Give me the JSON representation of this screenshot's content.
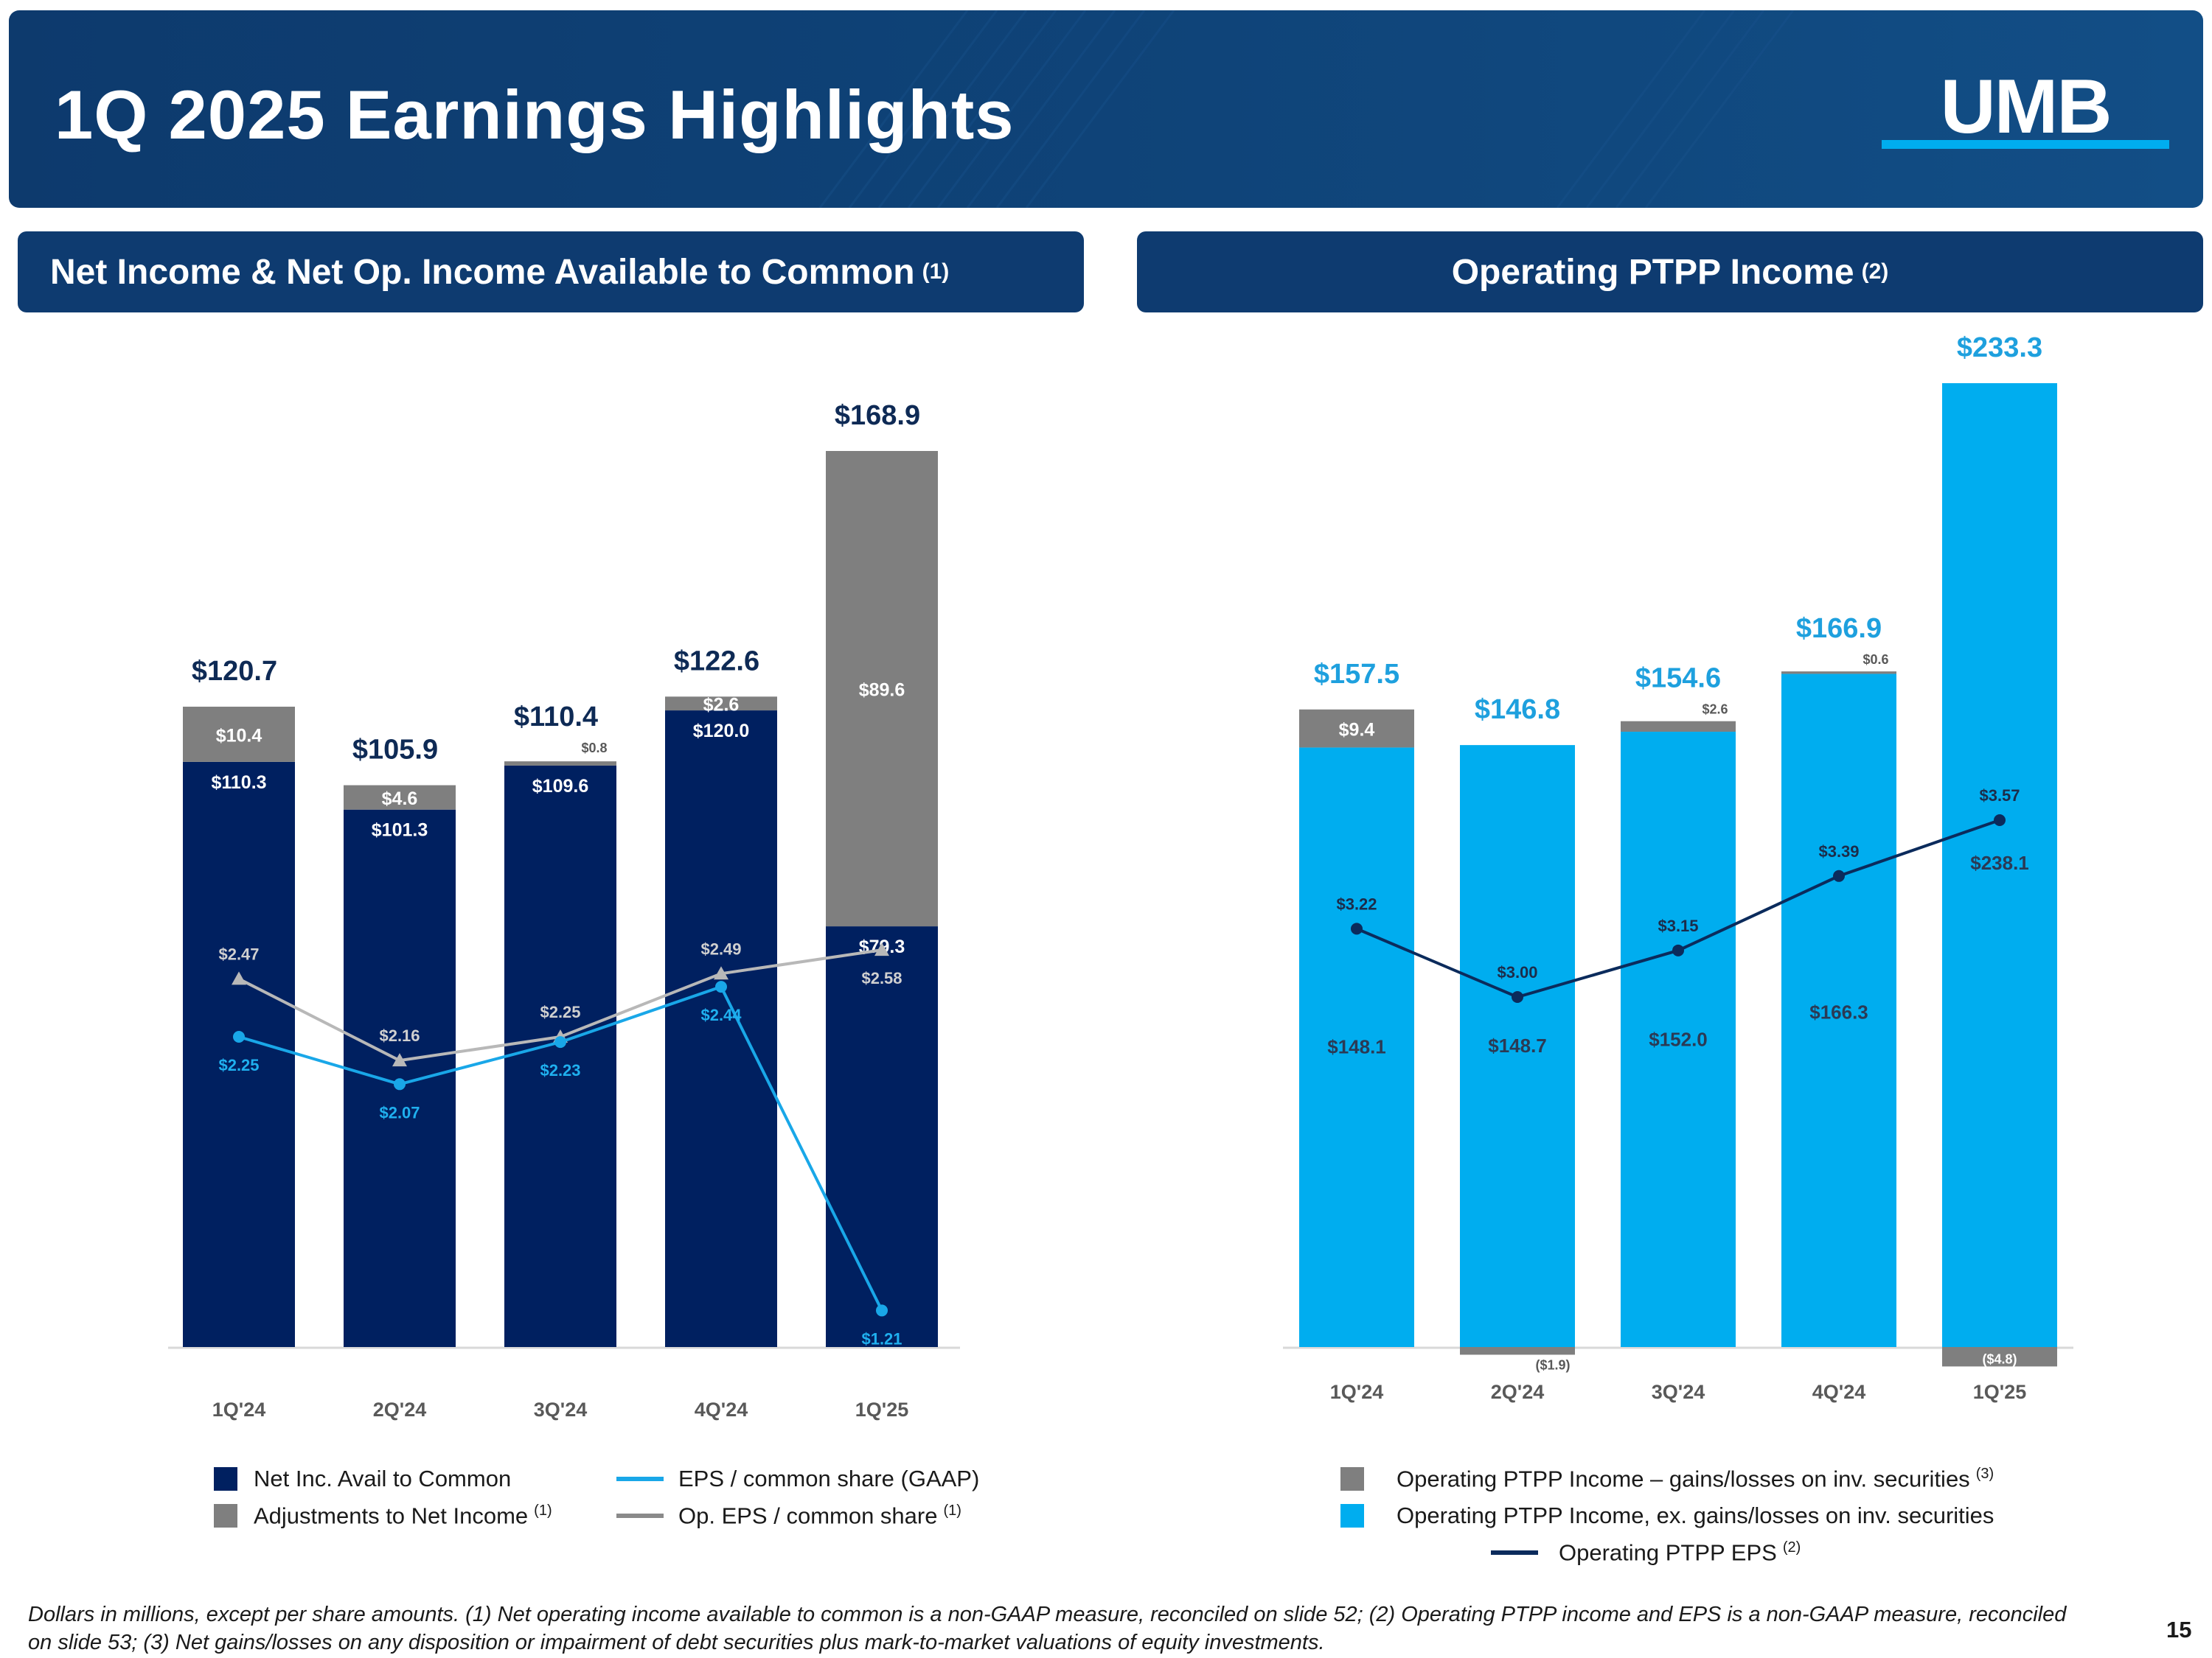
{
  "header": {
    "title": "1Q 2025 Earnings Highlights",
    "logo_text": "UMB"
  },
  "left_panel": {
    "title": "Net Income & Net Op. Income Available to Common",
    "title_note": "(1)"
  },
  "right_panel": {
    "title": "Operating PTPP Income",
    "title_note": "(2)"
  },
  "colors": {
    "navy": "#002060",
    "gray": "#7f7f7f",
    "cyan": "#00adef",
    "eps_cyan": "#19a7e8",
    "op_eps_gray": "#b8b8b8",
    "ptpp_eps_navy": "#0b2b5c",
    "header_bg": "#0e3b70"
  },
  "chart_data": [
    {
      "type": "bar",
      "stacked": true,
      "title": "Net Income & Net Op. Income Available to Common (1)",
      "categories": [
        "1Q'24",
        "2Q'24",
        "3Q'24",
        "4Q'24",
        "1Q'25"
      ],
      "series": [
        {
          "name": "Net Inc. Avail to Common",
          "values": [
            110.3,
            101.3,
            109.6,
            120.0,
            79.3
          ],
          "labels": [
            "$110.3",
            "$101.3",
            "$109.6",
            "$120.0",
            "$79.3"
          ]
        },
        {
          "name": "Adjustments to Net Income",
          "note": "(1)",
          "values": [
            10.4,
            4.6,
            0.8,
            2.6,
            89.6
          ],
          "labels": [
            "$10.4",
            "$4.6",
            "$0.8",
            "$2.6",
            "$89.6"
          ]
        }
      ],
      "totals": [
        120.7,
        105.9,
        110.4,
        122.6,
        168.9
      ],
      "total_labels": [
        "$120.7",
        "$105.9",
        "$110.4",
        "$122.6",
        "$168.9"
      ],
      "lines": [
        {
          "name": "EPS / common share (GAAP)",
          "values": [
            2.25,
            2.07,
            2.23,
            2.44,
            1.21
          ],
          "labels": [
            "$2.25",
            "$2.07",
            "$2.23",
            "$2.44",
            "$1.21"
          ]
        },
        {
          "name": "Op. EPS / common share",
          "note": "(1)",
          "values": [
            2.47,
            2.16,
            2.25,
            2.49,
            2.58
          ],
          "labels": [
            "$2.47",
            "$2.16",
            "$2.25",
            "$2.49",
            "$2.58"
          ]
        }
      ],
      "ylim": [
        0,
        180
      ],
      "eps_range": [
        0,
        3.1
      ],
      "legend_position": "bottom"
    },
    {
      "type": "bar",
      "stacked": true,
      "title": "Operating PTPP Income (2)",
      "categories": [
        "1Q'24",
        "2Q'24",
        "3Q'24",
        "4Q'24",
        "1Q'25"
      ],
      "series": [
        {
          "name": "Operating PTPP Income, ex. gains/losses on inv. securities",
          "values": [
            148.1,
            148.7,
            152.0,
            166.3,
            238.1
          ],
          "labels": [
            "$148.1",
            "$148.7",
            "$152.0",
            "$166.3",
            "$238.1"
          ]
        },
        {
          "name": "Operating PTPP Income – gains/losses on inv. securities",
          "note": "(3)",
          "values": [
            9.4,
            -1.9,
            2.6,
            0.6,
            -4.8
          ],
          "labels": [
            "$9.4",
            "($1.9)",
            "$2.6",
            "$0.6",
            "($4.8)"
          ]
        }
      ],
      "totals": [
        157.5,
        146.8,
        154.6,
        166.9,
        233.3
      ],
      "total_labels": [
        "$157.5",
        "$146.8",
        "$154.6",
        "$166.9",
        "$233.3"
      ],
      "lines": [
        {
          "name": "Operating PTPP EPS",
          "note": "(2)",
          "values": [
            3.22,
            3.0,
            3.15,
            3.39,
            3.57
          ],
          "labels": [
            "$3.22",
            "$3.00",
            "$3.15",
            "$3.39",
            "$3.57"
          ]
        }
      ],
      "ylim": [
        -5,
        240
      ],
      "eps_range": [
        0,
        5.7
      ],
      "legend_position": "bottom"
    }
  ],
  "footnote": "Dollars in millions, except per share amounts. (1) Net operating income available to common is a non-GAAP measure, reconciled on slide 52; (2) Operating PTPP income and EPS is a non-GAAP measure, reconciled on slide 53; (3) Net gains/losses on any disposition or impairment of debt securities plus mark-to-market valuations of equity investments.",
  "page_number": "15"
}
